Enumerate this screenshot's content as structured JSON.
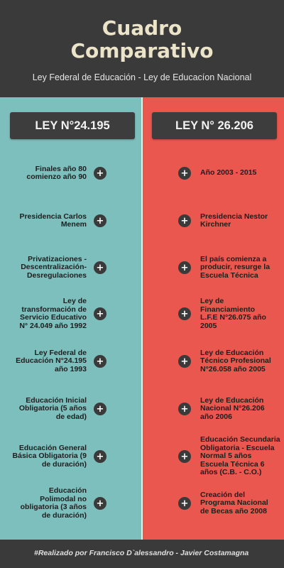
{
  "header": {
    "title_line1": "Cuadro",
    "title_line2": "Comparativo",
    "subtitle": "Ley Federal de Educación - Ley de Educacíon Nacional"
  },
  "colors": {
    "background": "#3a3a3a",
    "left_column": "#7dbfbd",
    "right_column": "#e9574e",
    "title": "#ece4c8"
  },
  "left": {
    "law_label": "LEY N°24.195",
    "items": [
      "Finales año 80\ncomienzo año 90",
      "Presidencia Carlos\nMenem",
      "Privatizaciones -\nDescentralización-\nDesregulaciones",
      "Ley de\ntransformación de\nServicio Educativo\nN° 24.049 año 1992",
      "Ley Federal de\nEducación N°24.195\naño 1993",
      "Educación Inicial\nObligatoria (5 años\nde edad)",
      "Educación General\nBásica Obligatoria (9\nde duración)",
      "Educación\nPolimodal no\nobligatoria (3 años\nde duración)"
    ]
  },
  "right": {
    "law_label": "LEY N° 26.206",
    "items": [
      "Año 2003 - 2015",
      "Presidencia Nestor\nKirchner",
      "El país comienza a\nproducir, resurge la\nEscuela Técnica",
      "Ley de\nFinanciamiento\nL.F.E N°26.075 año\n2005",
      "Ley de Educación\nTécnico Profesional\nN°26.058 año 2005",
      "Ley de Educación\nNacional N°26.206\naño 2006",
      "Educación Secundaria\nObligatoria - Escuela\nNormal 5 años\nEscuela Técnica 6\naños (C.B. - C.O.)",
      "Creación del\nPrograma Nacional\nde Becas año 2008"
    ]
  },
  "icons": {
    "expand": "plus-icon"
  },
  "footer": {
    "credit": "#Realizado por Francisco D`alessandro - Javier Costamagna"
  }
}
